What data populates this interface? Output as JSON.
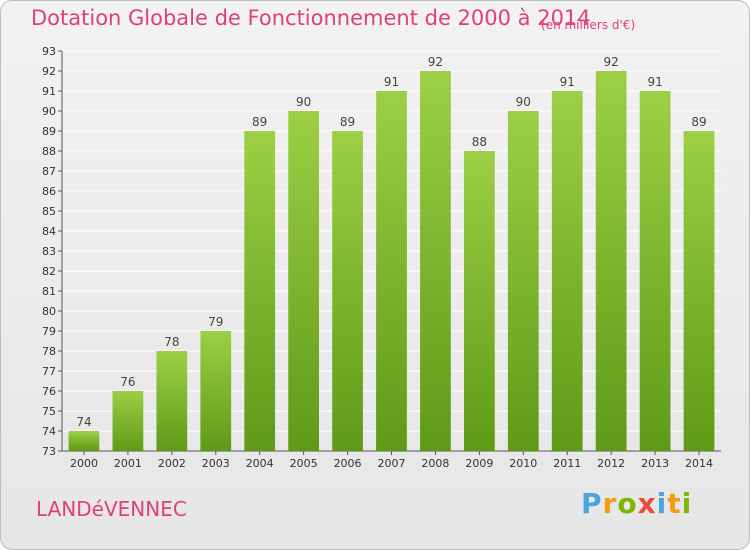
{
  "header": {
    "title": "Dotation Globale de Fonctionnement de 2000 à 2014",
    "unit": "(en milliers d'€)"
  },
  "commune": "LANDéVENNEC",
  "logo": "Proxiti",
  "colors": {
    "bar_top": "#9ccf45",
    "bar_bottom": "#5f9a17",
    "title": "#e0407a",
    "grid": "#ffffff"
  },
  "chart_data": {
    "type": "bar",
    "title": "Dotation Globale de Fonctionnement de 2000 à 2014",
    "unit": "(en milliers d'€)",
    "categories": [
      "2000",
      "2001",
      "2002",
      "2003",
      "2004",
      "2005",
      "2006",
      "2007",
      "2008",
      "2009",
      "2010",
      "2011",
      "2012",
      "2013",
      "2014"
    ],
    "values": [
      74,
      76,
      78,
      79,
      89,
      90,
      89,
      91,
      92,
      88,
      90,
      91,
      92,
      91,
      89
    ],
    "ylim": [
      73,
      93
    ],
    "yticks": [
      73,
      74,
      75,
      76,
      77,
      78,
      79,
      80,
      81,
      82,
      83,
      84,
      85,
      86,
      87,
      88,
      89,
      90,
      91,
      92,
      93
    ],
    "grid": true,
    "xlabel": "",
    "ylabel": ""
  }
}
